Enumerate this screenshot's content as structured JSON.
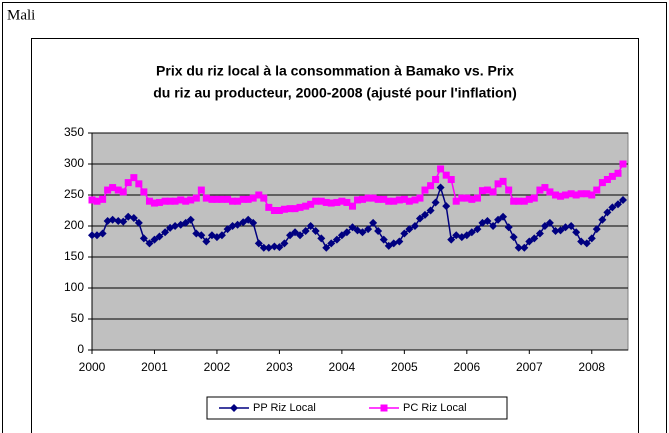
{
  "label": "Mali",
  "chart_data": {
    "type": "line",
    "title": [
      "Prix du riz local à la consommation à Bamako vs. Prix",
      "du riz au producteur, 2000-2008 (ajusté pour l'inflation)"
    ],
    "x": [
      2000,
      2000.08,
      2000.17,
      2000.25,
      2000.33,
      2000.42,
      2000.5,
      2000.58,
      2000.67,
      2000.75,
      2000.83,
      2000.92,
      2001,
      2001.08,
      2001.17,
      2001.25,
      2001.33,
      2001.42,
      2001.5,
      2001.58,
      2001.67,
      2001.75,
      2001.83,
      2001.92,
      2002,
      2002.08,
      2002.17,
      2002.25,
      2002.33,
      2002.42,
      2002.5,
      2002.58,
      2002.67,
      2002.75,
      2002.83,
      2002.92,
      2003,
      2003.08,
      2003.17,
      2003.25,
      2003.33,
      2003.42,
      2003.5,
      2003.58,
      2003.67,
      2003.75,
      2003.83,
      2003.92,
      2004,
      2004.08,
      2004.17,
      2004.25,
      2004.33,
      2004.42,
      2004.5,
      2004.58,
      2004.67,
      2004.75,
      2004.83,
      2004.92,
      2005,
      2005.08,
      2005.17,
      2005.25,
      2005.33,
      2005.42,
      2005.5,
      2005.58,
      2005.67,
      2005.75,
      2005.83,
      2005.92,
      2006,
      2006.08,
      2006.17,
      2006.25,
      2006.33,
      2006.42,
      2006.5,
      2006.58,
      2006.67,
      2006.75,
      2006.83,
      2006.92,
      2007,
      2007.08,
      2007.17,
      2007.25,
      2007.33,
      2007.42,
      2007.5,
      2007.58,
      2007.67,
      2007.75,
      2007.83,
      2007.92,
      2008,
      2008.08,
      2008.17,
      2008.25,
      2008.33,
      2008.42,
      2008.5
    ],
    "series": [
      {
        "name": "PP Riz Local",
        "color": "#000080",
        "marker": "diamond",
        "values": [
          185,
          185,
          188,
          208,
          210,
          208,
          207,
          215,
          213,
          205,
          180,
          172,
          178,
          183,
          190,
          197,
          200,
          202,
          205,
          210,
          188,
          185,
          175,
          185,
          182,
          185,
          195,
          200,
          202,
          206,
          210,
          205,
          172,
          165,
          165,
          167,
          166,
          172,
          185,
          190,
          185,
          192,
          200,
          192,
          180,
          165,
          172,
          178,
          185,
          190,
          198,
          193,
          190,
          195,
          205,
          192,
          178,
          168,
          172,
          175,
          188,
          195,
          200,
          212,
          218,
          225,
          238,
          262,
          232,
          178,
          185,
          182,
          185,
          190,
          195,
          205,
          208,
          200,
          210,
          215,
          198,
          182,
          165,
          165,
          175,
          180,
          188,
          200,
          205,
          192,
          193,
          198,
          200,
          190,
          175,
          172,
          180,
          195,
          210,
          222,
          230,
          235,
          242
        ]
      },
      {
        "name": "PC Riz Local",
        "color": "#ff00ff",
        "marker": "square",
        "values": [
          242,
          240,
          243,
          258,
          262,
          258,
          255,
          270,
          278,
          268,
          255,
          240,
          237,
          238,
          240,
          240,
          240,
          242,
          240,
          242,
          245,
          258,
          245,
          243,
          243,
          243,
          243,
          240,
          240,
          243,
          243,
          245,
          250,
          245,
          230,
          225,
          225,
          227,
          228,
          228,
          230,
          232,
          235,
          240,
          240,
          238,
          237,
          238,
          240,
          238,
          232,
          242,
          243,
          245,
          245,
          243,
          243,
          240,
          240,
          242,
          243,
          240,
          242,
          245,
          258,
          265,
          275,
          292,
          282,
          275,
          240,
          245,
          245,
          243,
          245,
          257,
          258,
          255,
          268,
          272,
          258,
          240,
          240,
          240,
          243,
          245,
          258,
          262,
          255,
          250,
          248,
          250,
          252,
          250,
          252,
          252,
          250,
          258,
          270,
          275,
          280,
          285,
          300
        ]
      }
    ],
    "xlim": [
      2000,
      2008.58
    ],
    "xticks": [
      2000,
      2001,
      2002,
      2003,
      2004,
      2005,
      2006,
      2007,
      2008
    ],
    "ylim": [
      0,
      350
    ],
    "yticks": [
      0,
      50,
      100,
      150,
      200,
      250,
      300,
      350
    ],
    "grid": true,
    "legend": "bottom",
    "plot_background": "#c0c0c0"
  }
}
